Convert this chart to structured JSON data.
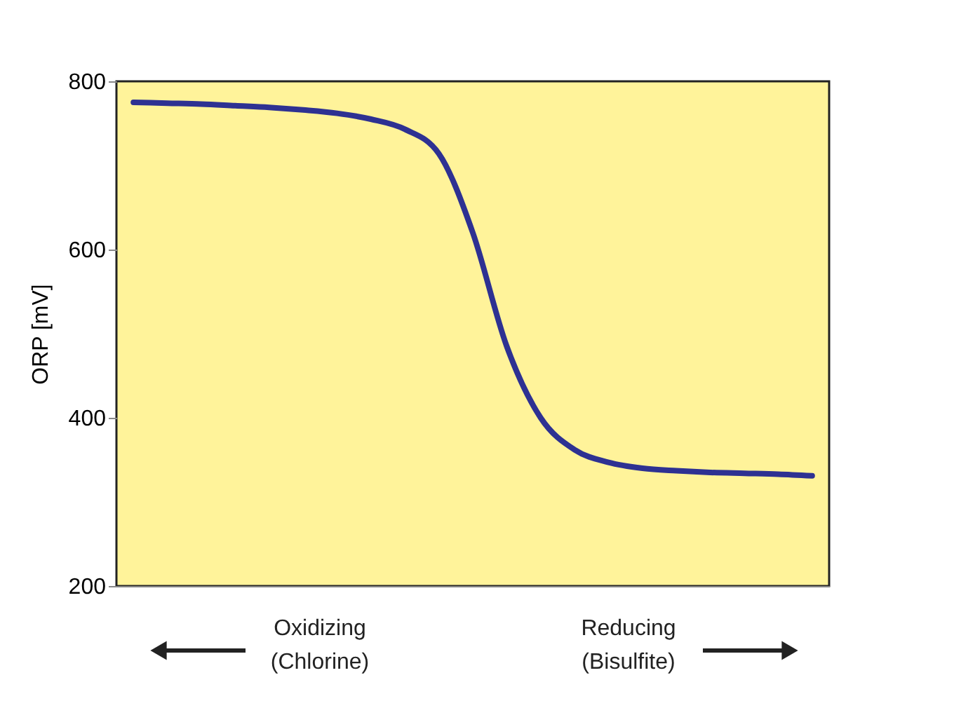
{
  "chart_data": {
    "type": "line",
    "ylabel": "ORP [mV]",
    "categories": [
      null,
      null,
      null,
      null,
      null,
      null,
      null,
      null,
      null,
      null,
      null,
      null,
      null,
      null,
      null,
      null,
      null,
      null,
      null,
      null,
      null
    ],
    "series": [
      {
        "color": "#2e3192",
        "values": [
          775,
          774,
          773,
          771,
          769,
          766,
          762,
          755,
          743,
          714,
          620,
          485,
          400,
          362,
          347,
          340,
          337,
          335,
          334,
          333,
          331
        ]
      }
    ],
    "ylim": [
      200,
      800
    ],
    "yticks": [
      200,
      400,
      600,
      800
    ],
    "grid": false,
    "tick_labels": "y",
    "marker": "none",
    "line_style": "solid",
    "annotations": [
      "Oxidizing\n(Chlorine)",
      "Reducing\n(Bisulfite)"
    ]
  }
}
